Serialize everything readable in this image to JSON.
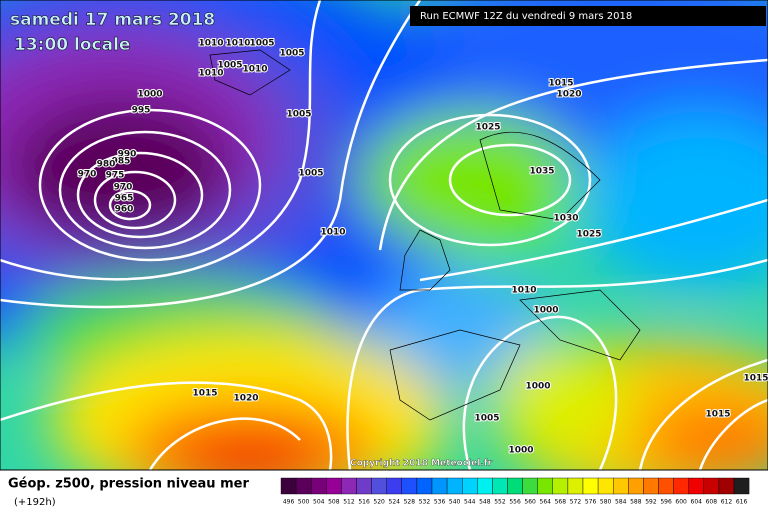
{
  "header": {
    "date": "samedi 17 mars 2018",
    "time": "13:00 locale",
    "run": "Run ECMWF 12Z du vendredi 9 mars 2018"
  },
  "copyright": "Copyright 2018 Meteociel.fr",
  "legend": {
    "title": "Géop. z500, pression niveau mer",
    "lead": "(+192h)",
    "values": [
      496,
      500,
      504,
      508,
      512,
      516,
      520,
      524,
      528,
      532,
      536,
      540,
      544,
      548,
      552,
      556,
      560,
      564,
      568,
      572,
      576,
      580,
      584,
      588,
      592,
      596,
      600,
      604,
      608,
      612,
      616
    ],
    "colors": [
      "#3c003c",
      "#5a005a",
      "#780078",
      "#960096",
      "#8c28b4",
      "#6e3cc8",
      "#5050dc",
      "#3c3cf0",
      "#1e50ff",
      "#0064ff",
      "#0096ff",
      "#00b4ff",
      "#00d2ff",
      "#00f0f0",
      "#00e6b4",
      "#00dc78",
      "#3cdc3c",
      "#78e600",
      "#b4f000",
      "#dcf000",
      "#ffff00",
      "#ffe600",
      "#ffc800",
      "#ffa000",
      "#ff7800",
      "#ff5000",
      "#ff2800",
      "#f00000",
      "#c80000",
      "#a00000",
      "#1e1e1e"
    ]
  },
  "isobar_labels": [
    "1010",
    "1010",
    "1005",
    "1005",
    "1005",
    "1010",
    "1010",
    "1000",
    "995",
    "1005",
    "990",
    "985",
    "980",
    "975",
    "970",
    "970",
    "965",
    "960",
    "1005",
    "1010",
    "1015",
    "1020",
    "1025",
    "1035",
    "1030",
    "1025",
    "1010",
    "1000",
    "1000",
    "1005",
    "1015",
    "1020",
    "1015",
    "1015",
    "1000"
  ]
}
